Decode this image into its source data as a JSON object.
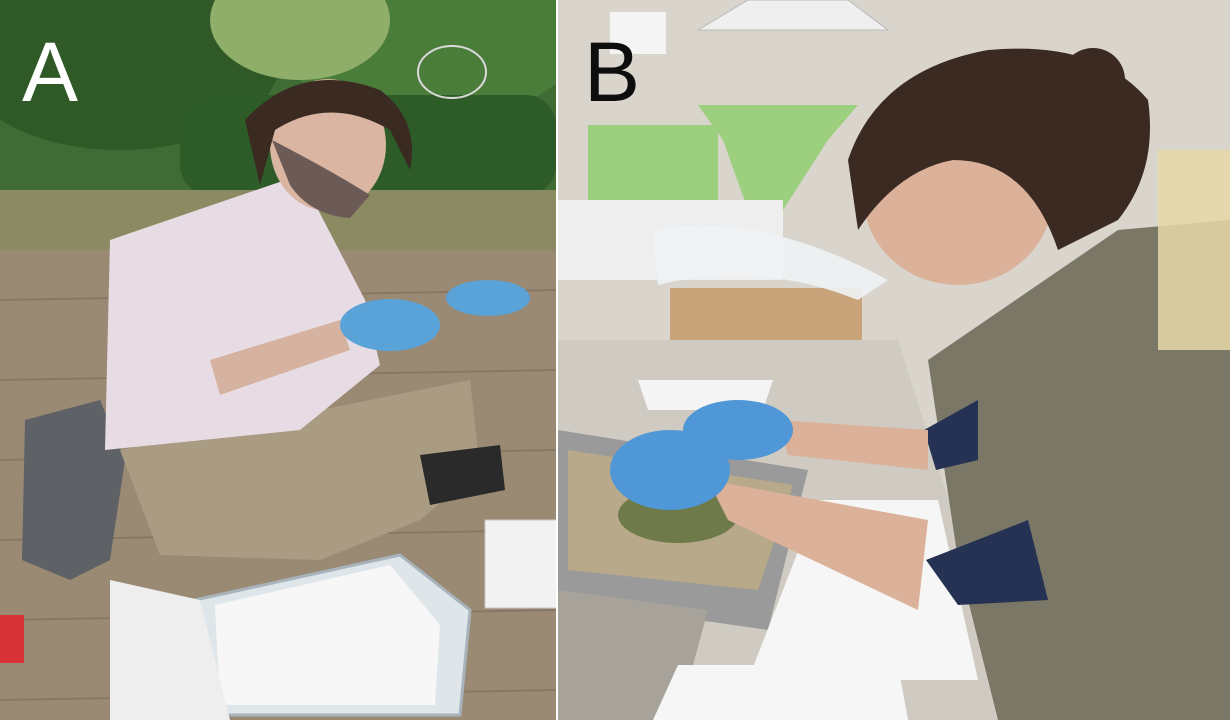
{
  "figure": {
    "panels": [
      {
        "label": "A"
      },
      {
        "label": "B"
      }
    ]
  }
}
